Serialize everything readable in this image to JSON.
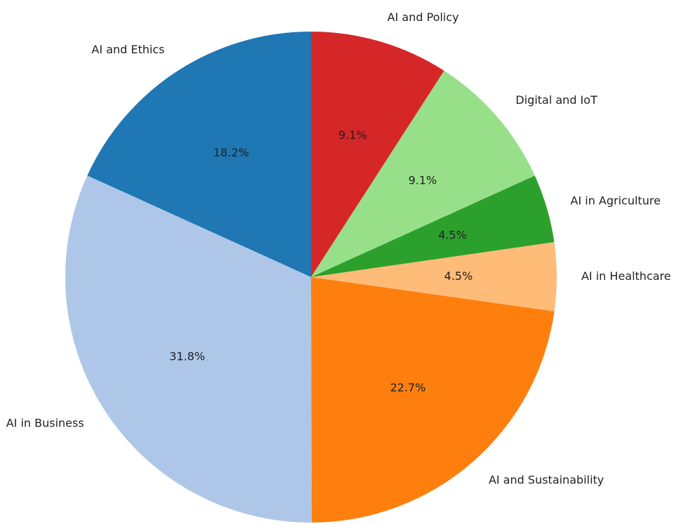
{
  "chart_data": {
    "type": "pie",
    "categories": [
      "AI and Ethics",
      "AI in Business",
      "AI and Sustainability",
      "AI in Healthcare",
      "AI in Agriculture",
      "Digital and IoT",
      "AI and Policy"
    ],
    "values": [
      18.2,
      31.8,
      22.7,
      4.5,
      4.5,
      9.1,
      9.1
    ],
    "value_labels": [
      "18.2%",
      "31.8%",
      "22.7%",
      "4.5%",
      "4.5%",
      "9.1%",
      "9.1%"
    ],
    "colors": [
      "#1f77b4",
      "#aec7e8",
      "#ff7f0e",
      "#ffbb78",
      "#2ca02c",
      "#98df8a",
      "#d62728"
    ]
  }
}
